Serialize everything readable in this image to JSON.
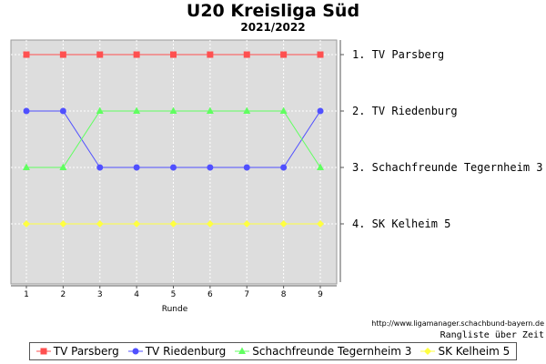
{
  "chart_data": {
    "type": "line",
    "title": "U20 Kreisliga Süd",
    "subtitle": "2021/2022",
    "xlabel": "Runde",
    "ylabel": "",
    "x": [
      1,
      2,
      3,
      4,
      5,
      6,
      7,
      8,
      9
    ],
    "y_axis": "rank (1 at top)",
    "ylim": [
      1,
      4
    ],
    "grid": true,
    "legend_position": "bottom",
    "series": [
      {
        "name": "TV Parsberg",
        "rank_label": "1. TV Parsberg",
        "color": "#ff5050",
        "marker": "square",
        "values": [
          1,
          1,
          1,
          1,
          1,
          1,
          1,
          1,
          1
        ]
      },
      {
        "name": "TV Riedenburg",
        "rank_label": "2. TV Riedenburg",
        "color": "#5050ff",
        "marker": "circle",
        "values": [
          2,
          2,
          3,
          3,
          3,
          3,
          3,
          3,
          2
        ]
      },
      {
        "name": "Schachfreunde Tegernheim 3",
        "rank_label": "3. Schachfreunde Tegernheim 3",
        "color": "#60ff60",
        "marker": "triangle",
        "values": [
          3,
          3,
          2,
          2,
          2,
          2,
          2,
          2,
          3
        ]
      },
      {
        "name": "SK Kelheim 5",
        "rank_label": "4. SK Kelheim 5",
        "color": "#ffff40",
        "marker": "diamond",
        "values": [
          4,
          4,
          4,
          4,
          4,
          4,
          4,
          4,
          4
        ]
      }
    ],
    "credit": "http://www.ligamanager.schachbund-bayern.de",
    "caption": "Rangliste über Zeit"
  }
}
